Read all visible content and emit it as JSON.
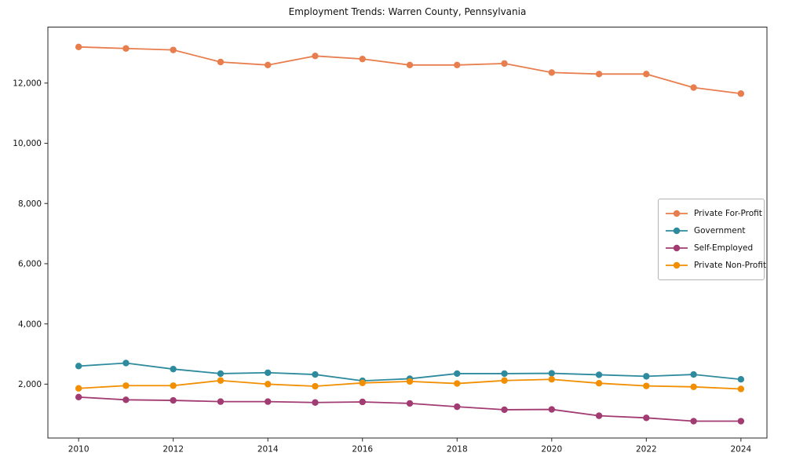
{
  "chart_data": {
    "type": "line",
    "title": "Employment Trends: Warren County, Pennsylvania",
    "xlabel": "",
    "ylabel": "",
    "x": [
      2010,
      2011,
      2012,
      2013,
      2014,
      2015,
      2016,
      2017,
      2018,
      2019,
      2020,
      2021,
      2022,
      2023,
      2024
    ],
    "series": [
      {
        "name": "Private For-Profit",
        "color": "#E87D4E",
        "values": [
          13200,
          13150,
          13100,
          12700,
          12600,
          12900,
          12800,
          12600,
          12600,
          12650,
          12350,
          12300,
          12300,
          11850,
          11650
        ]
      },
      {
        "name": "Government",
        "color": "#2E8B9E",
        "values": [
          2600,
          2700,
          2500,
          2350,
          2380,
          2320,
          2110,
          2180,
          2350,
          2350,
          2360,
          2310,
          2260,
          2320,
          2160
        ]
      },
      {
        "name": "Self-Employed",
        "color": "#A23B72",
        "values": [
          1570,
          1480,
          1460,
          1420,
          1420,
          1390,
          1410,
          1360,
          1250,
          1150,
          1160,
          950,
          880,
          770,
          770
        ]
      },
      {
        "name": "Private Non-Profit",
        "color": "#F18F01",
        "values": [
          1860,
          1950,
          1950,
          2120,
          2000,
          1930,
          2040,
          2090,
          2020,
          2120,
          2160,
          2030,
          1940,
          1910,
          1840
        ]
      }
    ],
    "x_ticks": [
      2010,
      2012,
      2014,
      2016,
      2018,
      2020,
      2022,
      2024
    ],
    "y_ticks": [
      2000,
      4000,
      6000,
      8000,
      10000,
      12000
    ],
    "xlim": [
      2009.35,
      2024.55
    ],
    "ylim": [
      210,
      13860
    ],
    "grid": false,
    "legend_position": "center right",
    "axis_color": "#262626",
    "marker": "circle"
  }
}
